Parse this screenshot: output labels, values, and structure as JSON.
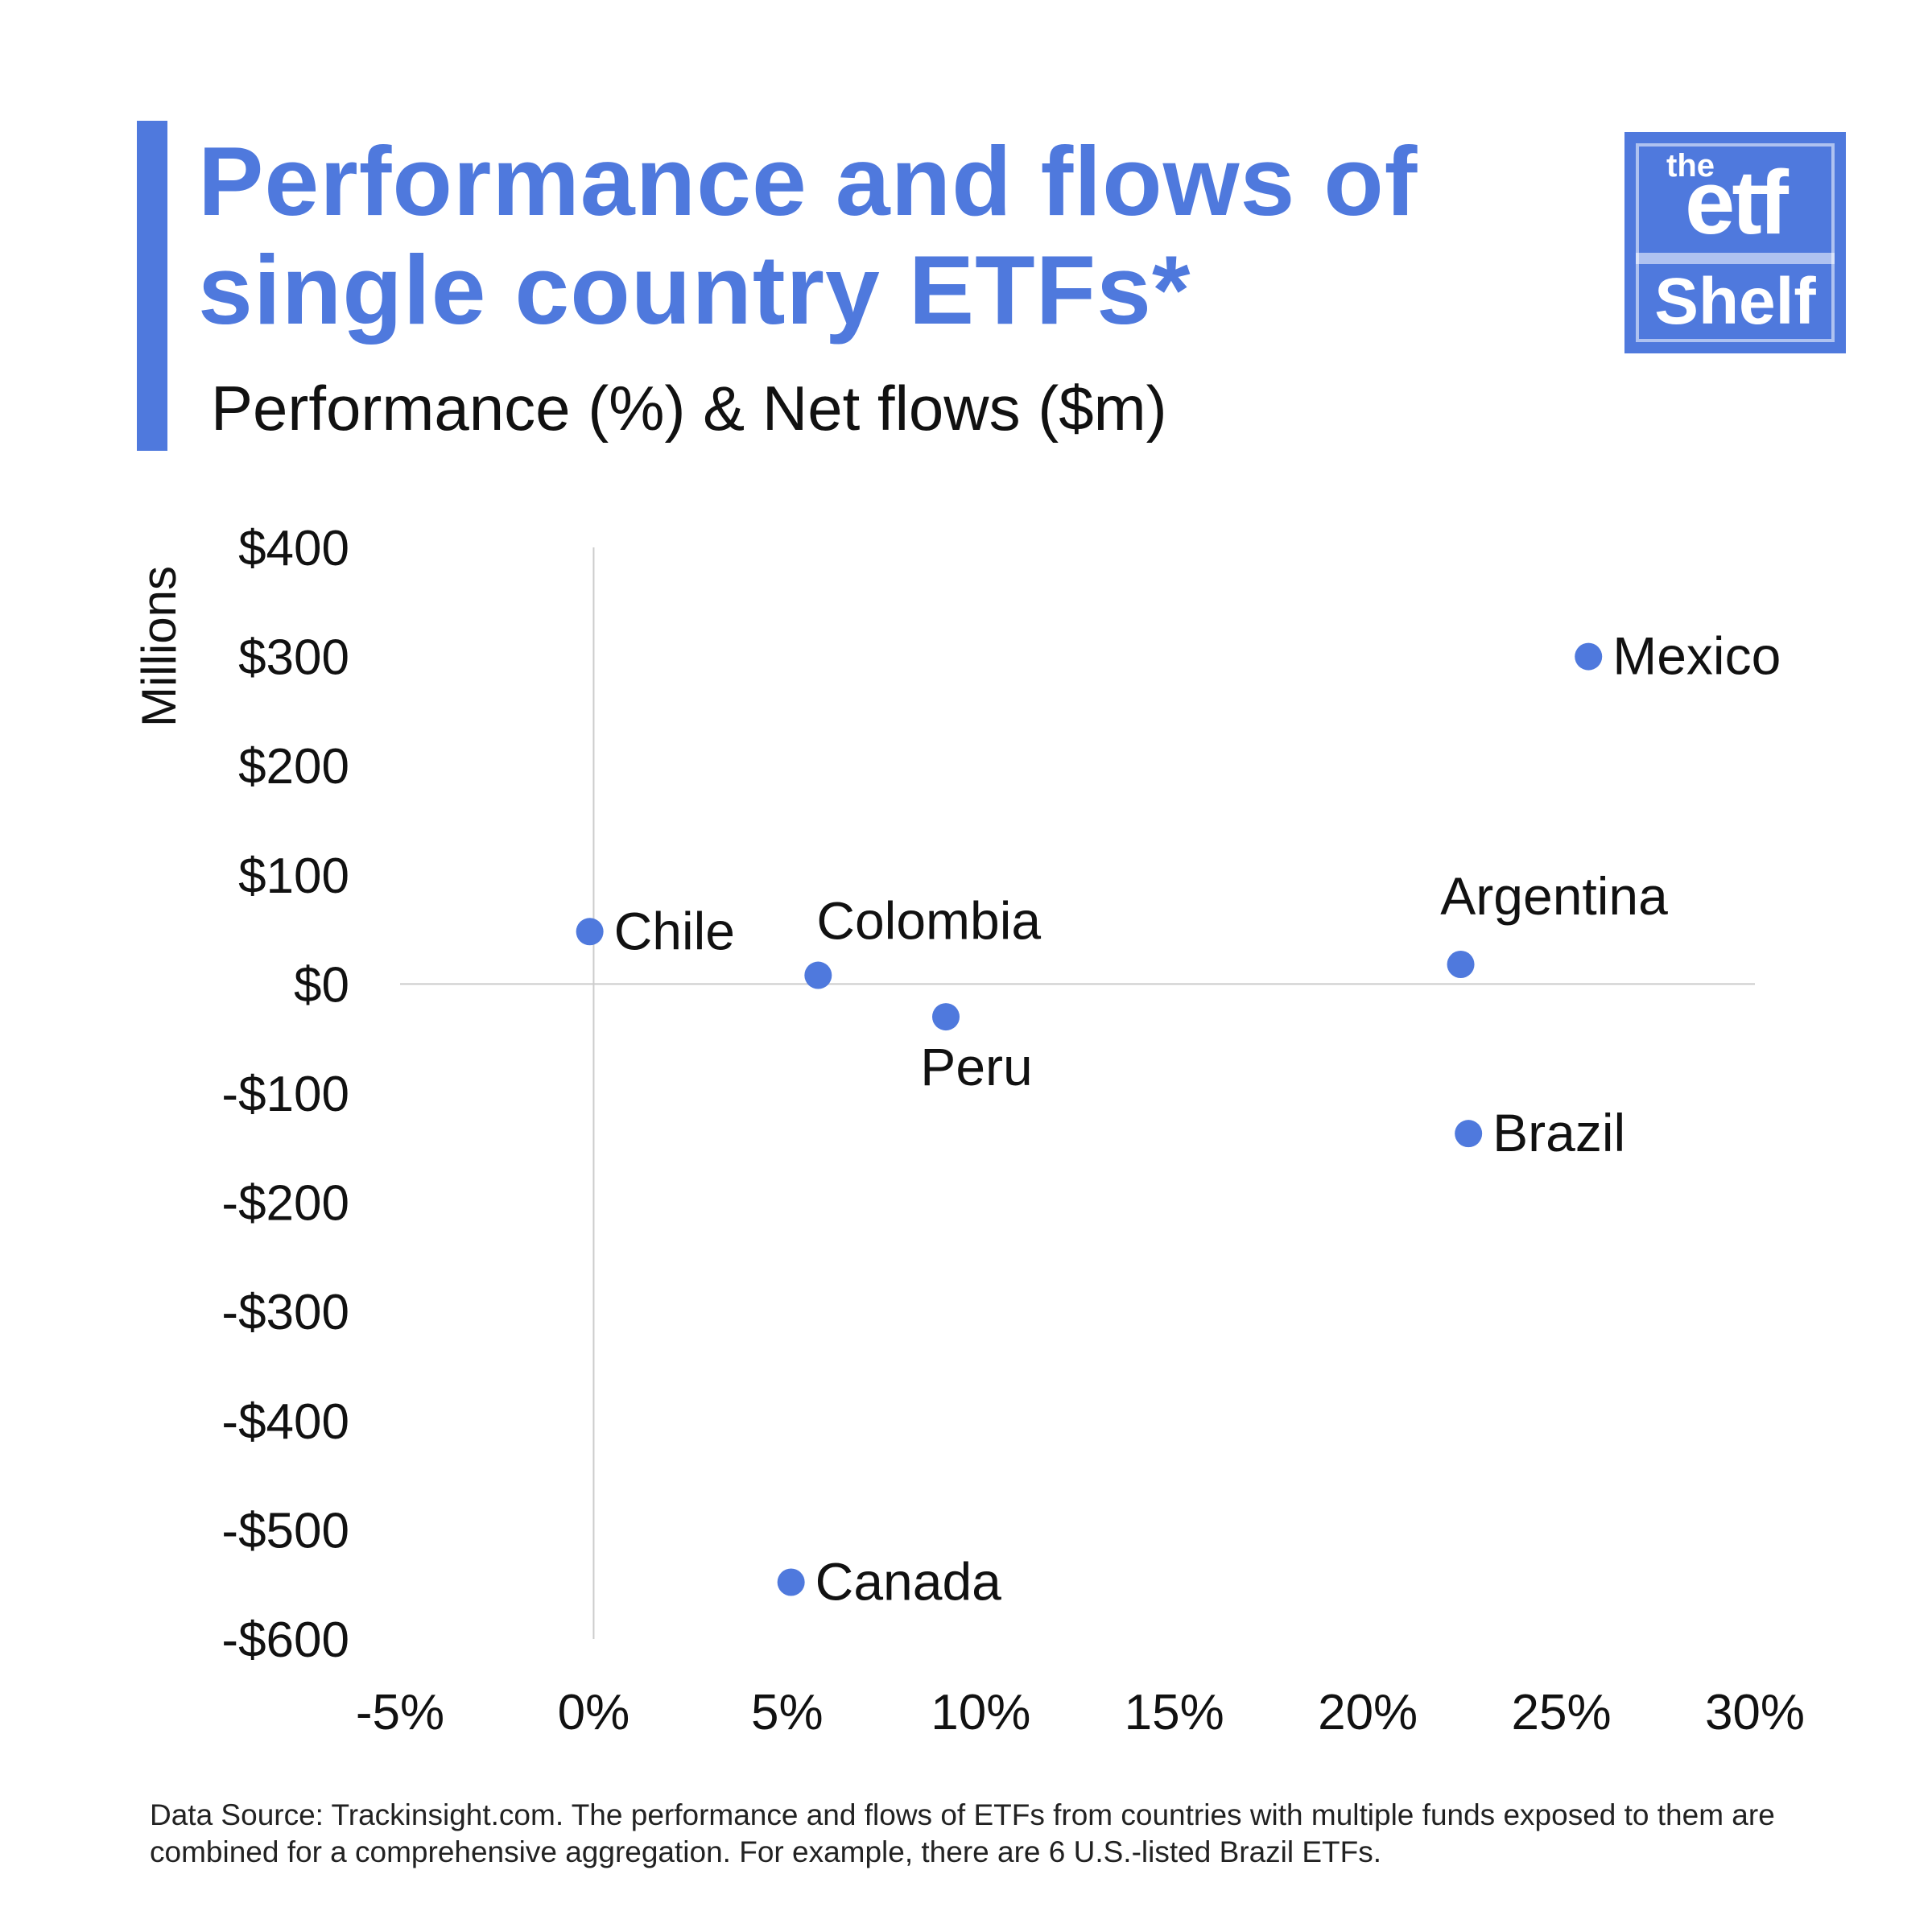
{
  "header": {
    "title": "Performance and flows of single country ETFs*",
    "subtitle": "Performance (%) & Net flows ($m)"
  },
  "logo": {
    "line1": "the",
    "line2": "etf",
    "line3": "Shelf"
  },
  "colors": {
    "accent": "#4f79dd",
    "point": "#4f79dd",
    "axis": "#cccccc",
    "text": "#111111"
  },
  "chart_data": {
    "type": "scatter",
    "title": "",
    "xlabel": "",
    "ylabel": "Millions",
    "xlim": [
      -0.05,
      0.3
    ],
    "ylim": [
      -600,
      400
    ],
    "x_ticks": [
      -0.05,
      0,
      0.05,
      0.1,
      0.15,
      0.2,
      0.25,
      0.3
    ],
    "x_tick_labels": [
      "-5%",
      "0%",
      "5%",
      "10%",
      "15%",
      "20%",
      "25%",
      "30%"
    ],
    "y_ticks": [
      400,
      300,
      200,
      100,
      0,
      -100,
      -200,
      -300,
      -400,
      -500,
      -600
    ],
    "y_tick_labels": [
      "$400",
      "$300",
      "$200",
      "$100",
      "$0",
      "-$100",
      "-$200",
      "-$300",
      "-$400",
      "-$500",
      "-$600"
    ],
    "grid": false,
    "points": [
      {
        "label": "Mexico",
        "x": 0.257,
        "y": 300,
        "label_pos": "right"
      },
      {
        "label": "Chile",
        "x": -0.001,
        "y": 48,
        "label_pos": "right"
      },
      {
        "label": "Colombia",
        "x": 0.058,
        "y": 8,
        "label_pos": "above-right"
      },
      {
        "label": "Peru",
        "x": 0.091,
        "y": -30,
        "label_pos": "below"
      },
      {
        "label": "Argentina",
        "x": 0.224,
        "y": 18,
        "label_pos": "above"
      },
      {
        "label": "Brazil",
        "x": 0.226,
        "y": -137,
        "label_pos": "right"
      },
      {
        "label": "Canada",
        "x": 0.051,
        "y": -548,
        "label_pos": "right"
      }
    ]
  },
  "footnote": "Data Source: Trackinsight.com. The performance and flows of ETFs from countries with multiple funds exposed to them are combined for a comprehensive aggregation. For example, there are 6 U.S.-listed Brazil ETFs."
}
